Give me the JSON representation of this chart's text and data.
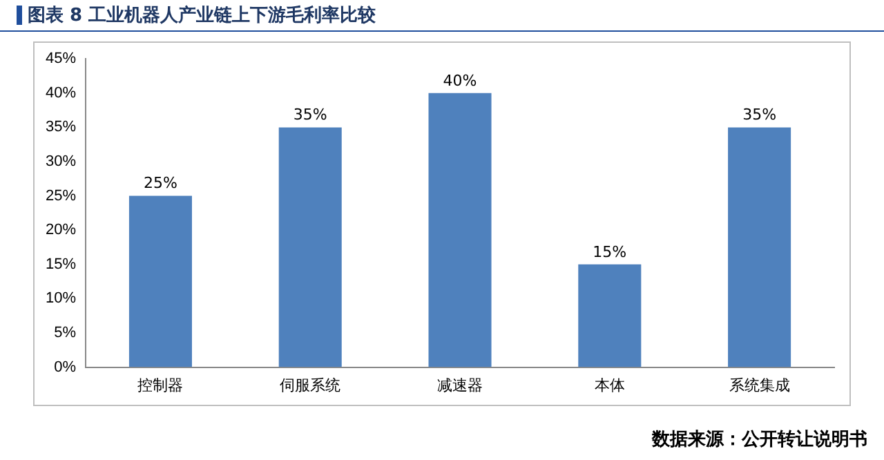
{
  "chart_data": {
    "type": "bar",
    "title": "图表 8 工业机器人产业链上下游毛利率比较",
    "categories": [
      "控制器",
      "伺服系统",
      "减速器",
      "本体",
      "系统集成"
    ],
    "values": [
      25,
      35,
      40,
      15,
      35
    ],
    "color": "#4f81bd",
    "value_labels": [
      "25%",
      "35%",
      "40%",
      "15%",
      "35%"
    ],
    "ylim": [
      0,
      45
    ],
    "yticks": [
      {
        "value": 0,
        "label": "0%"
      },
      {
        "value": 5,
        "label": "5%"
      },
      {
        "value": 10,
        "label": "10%"
      },
      {
        "value": 15,
        "label": "15%"
      },
      {
        "value": 20,
        "label": "20%"
      },
      {
        "value": 25,
        "label": "25%"
      },
      {
        "value": 30,
        "label": "30%"
      },
      {
        "value": 35,
        "label": "35%"
      },
      {
        "value": 40,
        "label": "40%"
      },
      {
        "value": 45,
        "label": "45%"
      }
    ],
    "grid": false,
    "legend": false,
    "annotations": [
      "数据来源：公开转让说明书"
    ]
  }
}
